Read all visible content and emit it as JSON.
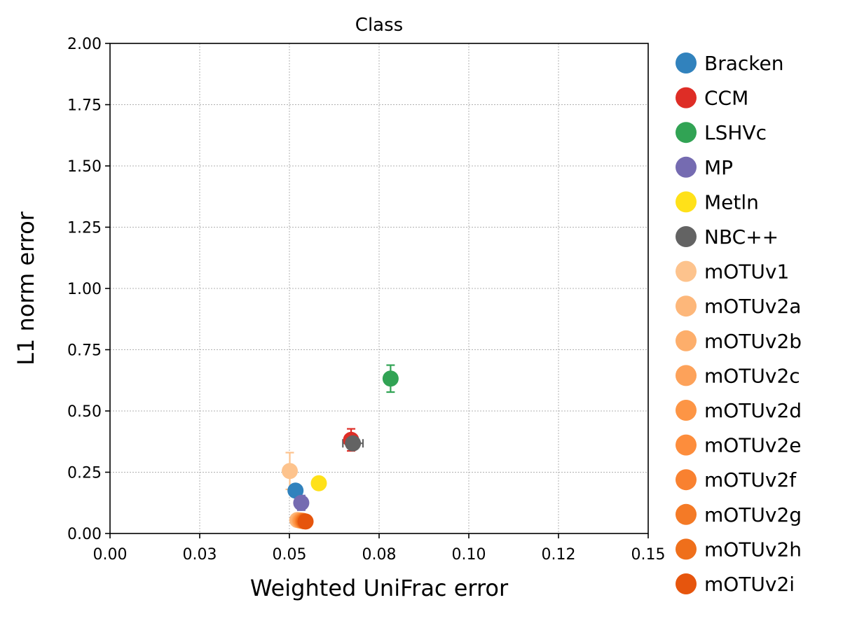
{
  "chart_data": {
    "type": "scatter",
    "title": "Class",
    "xlabel": "Weighted UniFrac error",
    "ylabel": "L1 norm error",
    "xlim": [
      0,
      0.15
    ],
    "ylim": [
      0,
      2.0
    ],
    "xticks": [
      {
        "value": 0.0,
        "label": "0.00"
      },
      {
        "value": 0.025,
        "label": "0.03"
      },
      {
        "value": 0.05,
        "label": "0.05"
      },
      {
        "value": 0.075,
        "label": "0.08"
      },
      {
        "value": 0.1,
        "label": "0.10"
      },
      {
        "value": 0.125,
        "label": "0.12"
      },
      {
        "value": 0.15,
        "label": "0.15"
      }
    ],
    "yticks": [
      {
        "value": 0.0,
        "label": "0.00"
      },
      {
        "value": 0.25,
        "label": "0.25"
      },
      {
        "value": 0.5,
        "label": "0.50"
      },
      {
        "value": 0.75,
        "label": "0.75"
      },
      {
        "value": 1.0,
        "label": "1.00"
      },
      {
        "value": 1.25,
        "label": "1.25"
      },
      {
        "value": 1.5,
        "label": "1.50"
      },
      {
        "value": 1.75,
        "label": "1.75"
      },
      {
        "value": 2.0,
        "label": "2.00"
      }
    ],
    "grid": true,
    "legend_position": "right-outside",
    "series": [
      {
        "name": "Bracken",
        "color": "#3182bd",
        "x": 0.0517,
        "y": 0.175,
        "xerr": 0.0012,
        "yerr": 0.008
      },
      {
        "name": "CCM",
        "color": "#de2d26",
        "x": 0.0672,
        "y": 0.382,
        "xerr": 0.001,
        "yerr": 0.045
      },
      {
        "name": "LSHVc",
        "color": "#31a354",
        "x": 0.0782,
        "y": 0.632,
        "xerr": 0.0015,
        "yerr": 0.055
      },
      {
        "name": "MP",
        "color": "#756bb1",
        "x": 0.0533,
        "y": 0.125,
        "xerr": 0.001,
        "yerr": 0.03
      },
      {
        "name": "Metln",
        "color": "#ffe119",
        "x": 0.0582,
        "y": 0.205,
        "xerr": 0.0008,
        "yerr": 0.008
      },
      {
        "name": "NBC++",
        "color": "#636363",
        "x": 0.0677,
        "y": 0.368,
        "xerr": 0.0028,
        "yerr": 0.02
      },
      {
        "name": "mOTUv1",
        "color": "#fdc38d",
        "x": 0.0501,
        "y": 0.255,
        "xerr": 0.0012,
        "yerr": 0.075
      },
      {
        "name": "mOTUv2a",
        "color": "#fdb77a",
        "x": 0.0522,
        "y": 0.055,
        "xerr": 0.001,
        "yerr": 0.01
      },
      {
        "name": "mOTUv2b",
        "color": "#fdae6b",
        "x": 0.0527,
        "y": 0.054,
        "xerr": 0.001,
        "yerr": 0.01
      },
      {
        "name": "mOTUv2c",
        "color": "#fda25a",
        "x": 0.053,
        "y": 0.053,
        "xerr": 0.001,
        "yerr": 0.01
      },
      {
        "name": "mOTUv2d",
        "color": "#fd9545",
        "x": 0.0533,
        "y": 0.052,
        "xerr": 0.001,
        "yerr": 0.01
      },
      {
        "name": "mOTUv2e",
        "color": "#fd8d3c",
        "x": 0.0536,
        "y": 0.052,
        "xerr": 0.001,
        "yerr": 0.01
      },
      {
        "name": "mOTUv2f",
        "color": "#f98130",
        "x": 0.0538,
        "y": 0.051,
        "xerr": 0.001,
        "yerr": 0.01
      },
      {
        "name": "mOTUv2g",
        "color": "#f47a26",
        "x": 0.054,
        "y": 0.05,
        "xerr": 0.001,
        "yerr": 0.01
      },
      {
        "name": "mOTUv2h",
        "color": "#ef6f1b",
        "x": 0.0542,
        "y": 0.05,
        "xerr": 0.001,
        "yerr": 0.01
      },
      {
        "name": "mOTUv2i",
        "color": "#e6550d",
        "x": 0.0545,
        "y": 0.049,
        "xerr": 0.001,
        "yerr": 0.01
      }
    ]
  }
}
